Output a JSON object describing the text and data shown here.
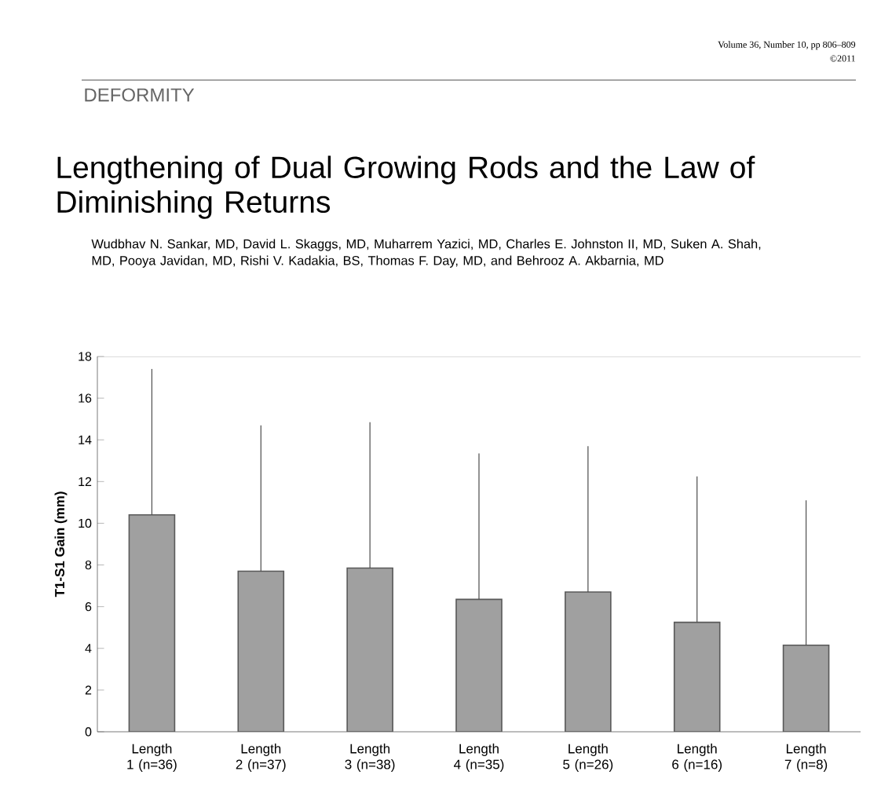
{
  "chart_data": {
    "type": "bar",
    "title": "Lengthening of Dual Growing Rods and the Law of Diminishing Returns",
    "subtitle": "Wudbhav N. Sankar, MD, David L. Skaggs, MD, Muharrem Yazici, MD, Charles E. Johnston II, MD, Suken A. Shah, MD, Pooya Javidan, MD, Rishi V. Kadakia, BS, Thomas F. Day, MD, and Behrooz A. Akbarnia, MD",
    "annotations": [
      "DEFORMITY",
      "Volume 36, Number 10, pp 806–809",
      "©2011"
    ],
    "ylabel": "T1-S1 Gain (mm)",
    "categories": [
      "Length 1 (n=36)",
      "Length 2 (n=37)",
      "Length 3 (n=38)",
      "Length 4 (n=35)",
      "Length 5 (n=26)",
      "Length 6 (n=16)",
      "Length 7 (n=8)"
    ],
    "values": [
      10.4,
      7.7,
      7.85,
      6.35,
      6.7,
      5.25,
      4.15
    ],
    "errors": [
      [
        10.4,
        17.4
      ],
      [
        7.7,
        14.7
      ],
      [
        7.85,
        14.85
      ],
      [
        6.35,
        13.35
      ],
      [
        6.7,
        13.7
      ],
      [
        5.25,
        12.25
      ],
      [
        4.15,
        11.1
      ]
    ],
    "color": "#a0a0a0",
    "ylim": [
      0,
      18
    ],
    "yticks": [
      0,
      2,
      4,
      6,
      8,
      10,
      12,
      14,
      16,
      18
    ]
  }
}
